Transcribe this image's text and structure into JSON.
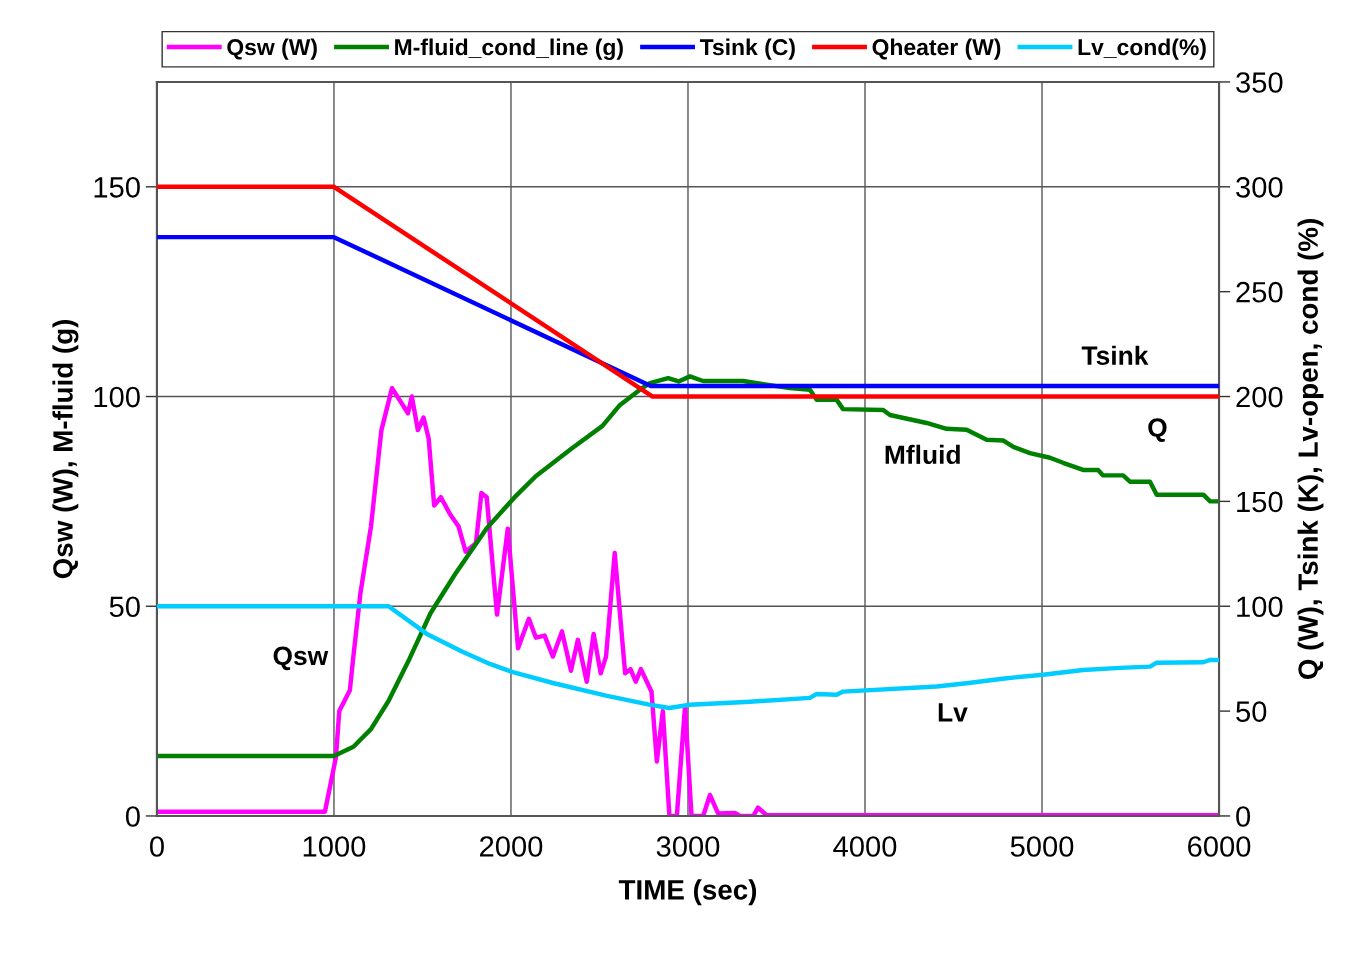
{
  "chart_data": {
    "type": "line",
    "xlabel": "TIME (sec)",
    "ylabel": "Qsw (W), M-fluid (g)",
    "y2label": "Q (W), Tsink (K), Lv-open, cond (%)",
    "xlim": [
      0,
      6000
    ],
    "xticks": [
      0,
      1000,
      2000,
      3000,
      4000,
      5000,
      6000
    ],
    "ylim": [
      0,
      175
    ],
    "yticks": [
      0,
      50,
      100,
      150
    ],
    "y2lim": [
      0,
      350
    ],
    "y2ticks": [
      0,
      50,
      100,
      150,
      200,
      250,
      300,
      350
    ],
    "grid": true,
    "legend": "top",
    "line_style": "solid",
    "marker": "none",
    "series": [
      {
        "name": "Qsw (W)",
        "color": "#ff00ff",
        "x": [
          0,
          949,
          1011,
          1030,
          1090,
          1107,
          1149,
          1209,
          1268,
          1328,
          1418,
          1440,
          1474,
          1506,
          1535,
          1566,
          1604,
          1655,
          1704,
          1744,
          1802,
          1833,
          1863,
          1921,
          1982,
          2040,
          2101,
          2141,
          2190,
          2237,
          2288,
          2339,
          2378,
          2428,
          2467,
          2507,
          2537,
          2586,
          2645,
          2675,
          2705,
          2734,
          2794,
          2824,
          2858,
          2895,
          2937,
          2983,
          3020,
          3086,
          3124,
          3170,
          3265,
          3294,
          3369,
          3396,
          3443,
          6000
        ],
        "values": [
          1,
          1,
          14,
          25,
          30,
          37,
          53,
          69,
          92,
          102,
          96,
          100,
          92,
          95,
          90,
          74,
          76,
          72,
          69,
          63,
          65,
          77,
          76,
          48,
          68.5,
          40,
          47,
          42.5,
          43,
          38,
          44,
          34.6,
          42,
          32,
          43.4,
          34,
          38,
          62.7,
          34,
          35,
          32,
          35,
          29.6,
          13,
          25,
          0,
          0,
          26,
          0,
          0,
          5,
          0.6,
          0.7,
          0,
          0,
          2,
          0.2,
          0.2
        ]
      },
      {
        "name": "M-fluid_cond_line (g)",
        "color": "#008000",
        "x": [
          0,
          1000,
          1110,
          1209,
          1308,
          1427,
          1546,
          1685,
          1863,
          2021,
          2140,
          2339,
          2517,
          2616,
          2734,
          2785,
          2888,
          2947,
          3011,
          3085,
          3311,
          3576,
          3689,
          3727,
          3840,
          3876,
          4103,
          4141,
          4348,
          4461,
          4574,
          4687,
          4782,
          4838,
          4932,
          5045,
          5119,
          5232,
          5317,
          5345,
          5458,
          5497,
          5610,
          5648,
          5911,
          5950,
          6000
        ],
        "values": [
          14.3,
          14.3,
          16.5,
          20.7,
          27.4,
          37.5,
          48.4,
          57.7,
          68.6,
          76,
          81,
          87.5,
          93,
          98,
          101.8,
          103.2,
          104.4,
          103.6,
          104.8,
          103.7,
          103.7,
          102,
          101.6,
          99.2,
          99.2,
          97,
          96.8,
          95.6,
          93.7,
          92.3,
          92.1,
          89.7,
          89.5,
          88,
          86.5,
          85.4,
          84.2,
          82.5,
          82.5,
          81.2,
          81.2,
          79.7,
          79.7,
          76.6,
          76.6,
          75,
          75
        ]
      },
      {
        "name": "Tsink (C)",
        "color": "#0000ff",
        "axis": "y2",
        "x": [
          0,
          1000,
          2790,
          6000
        ],
        "values": [
          276,
          276,
          205,
          205
        ]
      },
      {
        "name": "Qheater (W)",
        "color": "#ff0000",
        "axis": "y2",
        "x": [
          0,
          1000,
          2800,
          6000
        ],
        "values": [
          300,
          300,
          200,
          200
        ]
      },
      {
        "name": "Lv_cond(%)",
        "color": "#00ccff",
        "axis": "y2",
        "x": [
          0,
          1308,
          1525,
          1723,
          1881,
          2021,
          2237,
          2537,
          2774,
          2893,
          3011,
          3350,
          3689,
          3727,
          3840,
          3876,
          4405,
          4574,
          4800,
          5006,
          5232,
          5441,
          5610,
          5648,
          5911,
          5950,
          6000
        ],
        "values": [
          100,
          100,
          86.8,
          78.4,
          72.5,
          68.3,
          63.4,
          57.4,
          53.2,
          51.5,
          53,
          54.5,
          56.3,
          58.2,
          57.8,
          59.3,
          61.7,
          63.3,
          65.7,
          67.3,
          69.6,
          70.6,
          71.2,
          73.1,
          73.3,
          74.4,
          74.4
        ]
      }
    ],
    "annotations": [
      "Qsw",
      "Tsink",
      "Q",
      "Mfluid",
      "Lv"
    ]
  }
}
